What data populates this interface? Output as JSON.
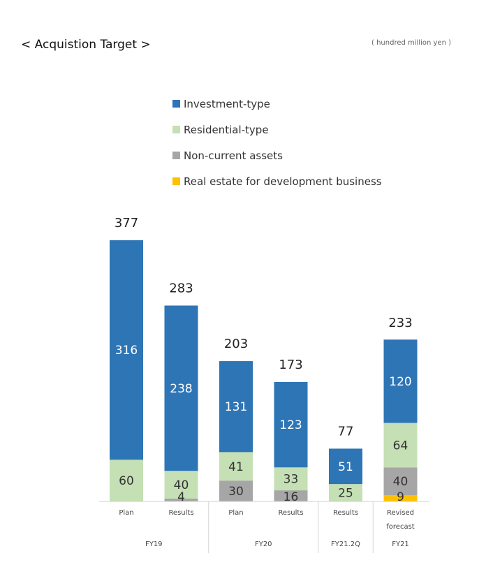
{
  "header": {
    "title": "< Acquistion Target >",
    "unit": "( hundred million yen )"
  },
  "chart_data": {
    "type": "bar",
    "stacked": true,
    "categories": [
      "Plan",
      "Results",
      "Plan",
      "Results",
      "Results",
      "Revised forecast"
    ],
    "groups": [
      {
        "label": "FY19",
        "span": 2
      },
      {
        "label": "FY20",
        "span": 2
      },
      {
        "label": "FY21.2Q",
        "span": 1
      },
      {
        "label": "FY21",
        "span": 1
      }
    ],
    "series": [
      {
        "name": "Real estate for development business",
        "color": "#FFC000",
        "values": [
          0,
          0,
          0,
          0,
          0,
          9
        ]
      },
      {
        "name": "Non-current assets",
        "color": "#A6A6A6",
        "values": [
          0,
          4,
          30,
          16,
          0,
          40
        ]
      },
      {
        "name": "Residential-type",
        "color": "#C5E0B4",
        "values": [
          60,
          40,
          41,
          33,
          25,
          64
        ]
      },
      {
        "name": "Investment-type",
        "color": "#2E75B6",
        "values": [
          316,
          238,
          131,
          123,
          51,
          120
        ]
      }
    ],
    "totals": [
      377,
      283,
      203,
      173,
      77,
      233
    ],
    "legend_order": [
      "Investment-type",
      "Residential-type",
      "Non-current assets",
      "Real estate for development business"
    ],
    "legend_position": "top",
    "grid": false
  }
}
